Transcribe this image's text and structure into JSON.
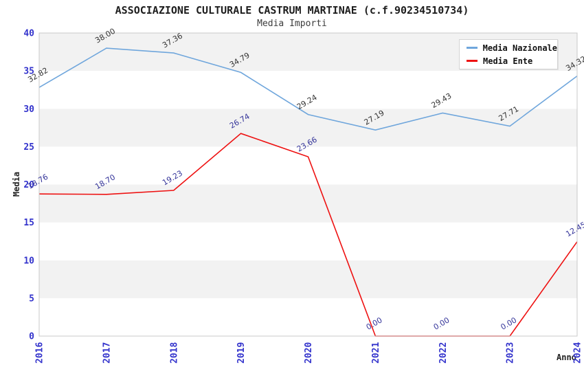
{
  "title": "ASSOCIAZIONE CULTURALE CASTRUM MARTINAE (c.f.90234510734)",
  "subtitle": "Media Importi",
  "chart_data": {
    "type": "line",
    "title": "ASSOCIAZIONE CULTURALE CASTRUM MARTINAE (c.f.90234510734)",
    "subtitle": "Media Importi",
    "categories": [
      "2016",
      "2017",
      "2018",
      "2019",
      "2020",
      "2021",
      "2022",
      "2023",
      "2024"
    ],
    "series": [
      {
        "name": "Media Nazionale",
        "color": "#6fa6dc",
        "label_color": "#333333",
        "values": [
          32.82,
          38.0,
          37.36,
          34.79,
          29.24,
          27.19,
          29.43,
          27.71,
          34.32
        ]
      },
      {
        "name": "Media Ente",
        "color": "#ee1111",
        "label_color": "#333399",
        "values": [
          18.76,
          18.7,
          19.23,
          26.74,
          23.66,
          0.0,
          0.0,
          0.0,
          12.45
        ]
      }
    ],
    "xlabel": "Anno",
    "ylabel": "Media",
    "ylim": [
      0,
      40
    ],
    "ytick_step": 5,
    "yticks": [
      0,
      5,
      10,
      15,
      20,
      25,
      30,
      35,
      40
    ],
    "value_label_decimals": 2,
    "legend_position": "top-right",
    "grid": "alternating-bands",
    "band_color": "#f2f2f2",
    "plot_background": "#ffffff",
    "plot_border_color": "#c8c8c8",
    "tick_label_color": "#3333cc"
  }
}
